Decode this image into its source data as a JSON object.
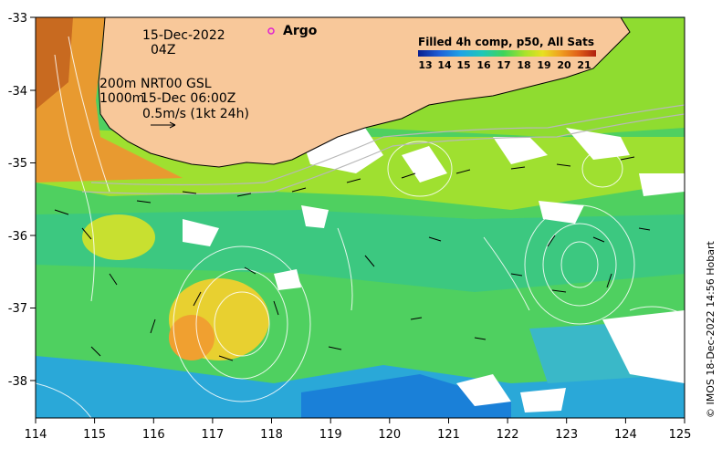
{
  "map": {
    "date_line": "15-Dec-2022",
    "hour_line": "04Z",
    "depth_200": "200m",
    "depth_1000": "1000m",
    "product_line": "NRT00 GSL",
    "product_time": "15-Dec 06:00Z",
    "scale_text": "0.5m/s (1kt 24h)",
    "argo_label": "Argo",
    "colorbar_title": "Filled 4h comp, p50, All Sats",
    "colorbar_ticks": [
      "13",
      "14",
      "15",
      "16",
      "17",
      "18",
      "19",
      "20",
      "21"
    ],
    "colorbar_colors": [
      "#0a1f8f",
      "#1f5fd8",
      "#1fa3e6",
      "#20c7b8",
      "#3fd45a",
      "#a8e22a",
      "#e8e020",
      "#f0a020",
      "#e06018",
      "#b02010"
    ],
    "credit": "© IMOS 18-Dec-2022 14:56 Hobart",
    "x_ticks": [
      "114",
      "115",
      "116",
      "117",
      "118",
      "119",
      "120",
      "121",
      "122",
      "123",
      "124",
      "125"
    ],
    "y_ticks": [
      "-33",
      "-34",
      "-35",
      "-36",
      "-37",
      "-38"
    ],
    "land_color": "#f8c89a",
    "argo_color": "#e020d0"
  }
}
